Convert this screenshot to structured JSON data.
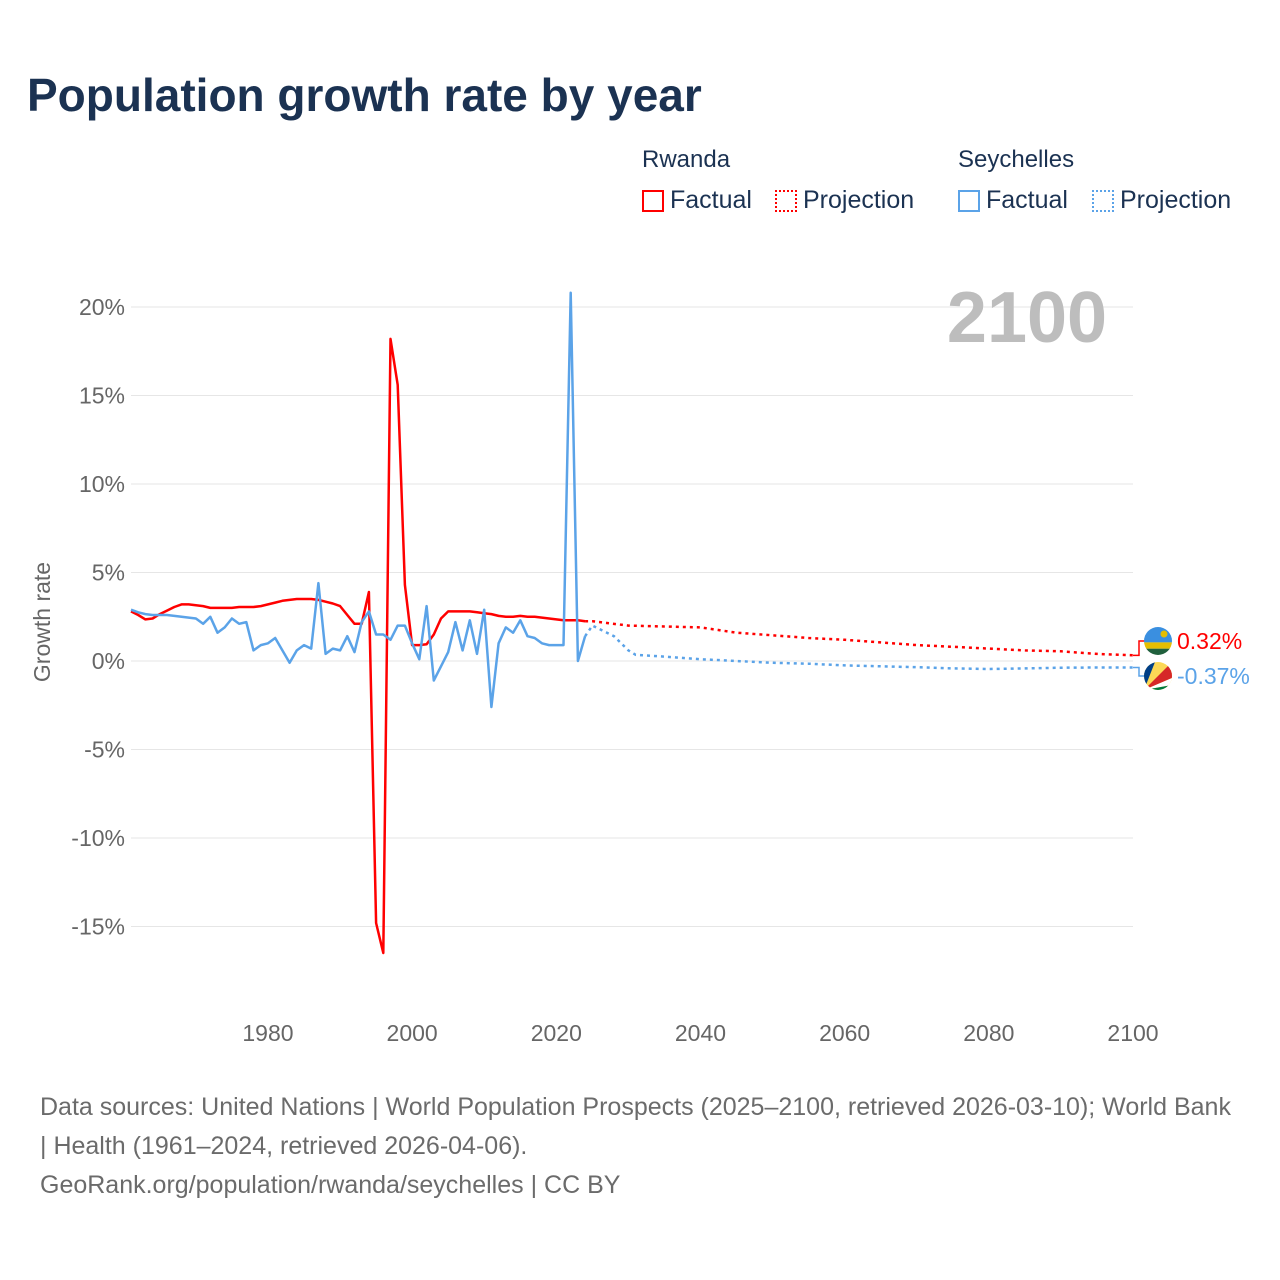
{
  "chart_data": {
    "type": "line",
    "title": "Population growth rate by year",
    "ylabel": "Growth rate",
    "xlabel": "",
    "xlim": [
      1961,
      2100
    ],
    "ylim": [
      -19,
      22
    ],
    "x_ticks": [
      "1980",
      "2000",
      "2020",
      "2040",
      "2060",
      "2080",
      "2100"
    ],
    "y_ticks": [
      {
        "v": 20,
        "label": "20%"
      },
      {
        "v": 15,
        "label": "15%"
      },
      {
        "v": 10,
        "label": "10%"
      },
      {
        "v": 5,
        "label": "5%"
      },
      {
        "v": 0,
        "label": "0%"
      },
      {
        "v": -5,
        "label": "-5%"
      },
      {
        "v": -10,
        "label": "-10%"
      },
      {
        "v": -15,
        "label": "-15%"
      }
    ],
    "year_overlay": "2100",
    "legend": {
      "groups": [
        {
          "name": "Rwanda",
          "items": [
            "Factual",
            "Projection"
          ]
        },
        {
          "name": "Seychelles",
          "items": [
            "Factual",
            "Projection"
          ]
        }
      ]
    },
    "series": [
      {
        "name": "Rwanda",
        "color": "#ff0000",
        "end_label": "0.32%",
        "factual": {
          "x": [
            1961,
            1962,
            1963,
            1964,
            1965,
            1966,
            1967,
            1968,
            1969,
            1970,
            1971,
            1972,
            1973,
            1974,
            1975,
            1976,
            1977,
            1978,
            1979,
            1980,
            1981,
            1982,
            1983,
            1984,
            1985,
            1986,
            1987,
            1988,
            1989,
            1990,
            1991,
            1992,
            1993,
            1994,
            1995,
            1996,
            1997,
            1998,
            1999,
            2000,
            2001,
            2002,
            2003,
            2004,
            2005,
            2006,
            2007,
            2008,
            2009,
            2010,
            2011,
            2012,
            2013,
            2014,
            2015,
            2016,
            2017,
            2018,
            2019,
            2020,
            2021,
            2022,
            2023,
            2024
          ],
          "y": [
            2.8,
            2.6,
            2.35,
            2.4,
            2.65,
            2.85,
            3.05,
            3.2,
            3.2,
            3.15,
            3.1,
            3.0,
            3.0,
            3.0,
            3.0,
            3.05,
            3.05,
            3.05,
            3.1,
            3.2,
            3.3,
            3.4,
            3.45,
            3.5,
            3.5,
            3.5,
            3.45,
            3.35,
            3.25,
            3.1,
            2.6,
            2.1,
            2.1,
            3.9,
            -14.8,
            -16.5,
            18.2,
            15.6,
            4.3,
            0.9,
            0.9,
            0.95,
            1.5,
            2.4,
            2.8,
            2.8,
            2.8,
            2.8,
            2.75,
            2.7,
            2.65,
            2.55,
            2.5,
            2.5,
            2.55,
            2.5,
            2.5,
            2.45,
            2.4,
            2.35,
            2.3,
            2.3,
            2.3,
            2.25
          ]
        },
        "projection": {
          "x": [
            2024,
            2025,
            2030,
            2035,
            2040,
            2045,
            2050,
            2055,
            2060,
            2065,
            2070,
            2075,
            2080,
            2085,
            2090,
            2095,
            2100
          ],
          "y": [
            2.25,
            2.25,
            2.0,
            1.95,
            1.9,
            1.6,
            1.45,
            1.3,
            1.2,
            1.05,
            0.9,
            0.8,
            0.7,
            0.6,
            0.55,
            0.4,
            0.32
          ]
        }
      },
      {
        "name": "Seychelles",
        "color": "#5ba3e8",
        "end_label": "-0.37%",
        "factual": {
          "x": [
            1961,
            1962,
            1963,
            1964,
            1965,
            1966,
            1967,
            1968,
            1969,
            1970,
            1971,
            1972,
            1973,
            1974,
            1975,
            1976,
            1977,
            1978,
            1979,
            1980,
            1981,
            1982,
            1983,
            1984,
            1985,
            1986,
            1987,
            1988,
            1989,
            1990,
            1991,
            1992,
            1993,
            1994,
            1995,
            1996,
            1997,
            1998,
            1999,
            2000,
            2001,
            2002,
            2003,
            2004,
            2005,
            2006,
            2007,
            2008,
            2009,
            2010,
            2011,
            2012,
            2013,
            2014,
            2015,
            2016,
            2017,
            2018,
            2019,
            2020,
            2021,
            2022,
            2023,
            2024
          ],
          "y": [
            2.9,
            2.75,
            2.65,
            2.6,
            2.6,
            2.6,
            2.55,
            2.5,
            2.45,
            2.4,
            2.1,
            2.5,
            1.6,
            1.9,
            2.4,
            2.1,
            2.2,
            0.6,
            0.9,
            1.0,
            1.3,
            0.6,
            -0.1,
            0.6,
            0.9,
            0.7,
            4.4,
            0.4,
            0.7,
            0.6,
            1.4,
            0.5,
            2.2,
            2.8,
            1.5,
            1.5,
            1.2,
            2.0,
            2.0,
            1.0,
            0.1,
            3.1,
            -1.1,
            -0.3,
            0.5,
            2.2,
            0.6,
            2.3,
            0.4,
            2.9,
            -2.6,
            1.0,
            1.9,
            1.6,
            2.3,
            1.4,
            1.3,
            1.0,
            0.9,
            0.9,
            0.9,
            20.8,
            0.0,
            1.4
          ]
        },
        "projection": {
          "x": [
            2024,
            2025,
            2028,
            2030,
            2031,
            2035,
            2040,
            2045,
            2050,
            2055,
            2060,
            2065,
            2070,
            2075,
            2080,
            2085,
            2090,
            2095,
            2100
          ],
          "y": [
            1.4,
            2.0,
            1.4,
            0.6,
            0.35,
            0.25,
            0.1,
            0.0,
            -0.1,
            -0.15,
            -0.25,
            -0.3,
            -0.35,
            -0.42,
            -0.45,
            -0.42,
            -0.38,
            -0.37,
            -0.37
          ]
        }
      }
    ]
  },
  "footer": {
    "sources": "Data sources: United Nations | World Population Prospects (2025–2100, retrieved 2026-03-10); World Bank | Health (1961–2024, retrieved 2026-04-06).",
    "credit": "GeoRank.org/population/rwanda/seychelles | CC BY"
  }
}
